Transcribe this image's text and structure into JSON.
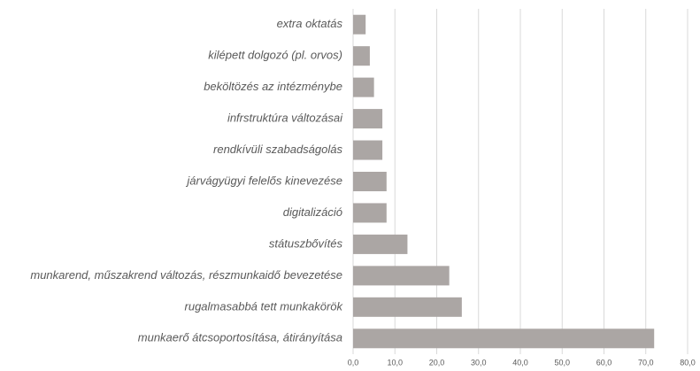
{
  "chart_data": {
    "type": "hbar",
    "categories": [
      "extra oktatás",
      "kilépett dolgozó (pl. orvos)",
      "beköltözés az intézménybe",
      "infrstruktúra változásai",
      "rendkívüli szabadságolás",
      "járvágyügyi felelős kinevezése",
      "digitalizáció",
      "státuszbővítés",
      "munkarend, műszakrend változás, részmunkaidő bevezetése",
      "rugalmasabbá tett munkakörök",
      "munkaerő átcsoportosítása, átirányítása"
    ],
    "values": [
      3,
      4,
      5,
      7,
      7,
      8,
      8,
      13,
      23,
      26,
      72
    ],
    "color": "#aba6a4",
    "xlim": [
      0,
      80
    ],
    "xticks": [
      {
        "value": 0,
        "label": "0,0"
      },
      {
        "value": 10,
        "label": "10,0"
      },
      {
        "value": 20,
        "label": "20,0"
      },
      {
        "value": 30,
        "label": "30,0"
      },
      {
        "value": 40,
        "label": "40,0"
      },
      {
        "value": 50,
        "label": "50,0"
      },
      {
        "value": 60,
        "label": "60,0"
      },
      {
        "value": 70,
        "label": "70,0"
      },
      {
        "value": 80,
        "label": "80,0"
      }
    ],
    "grid": true
  }
}
